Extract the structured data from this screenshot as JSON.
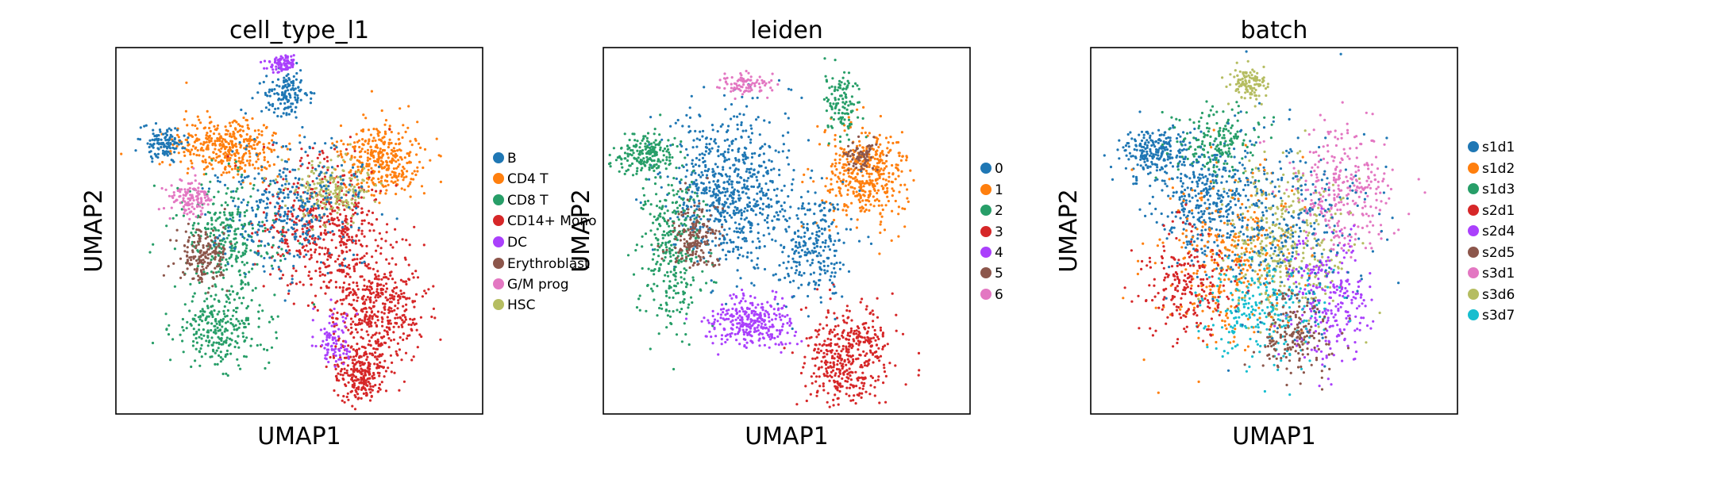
{
  "chart_data": [
    {
      "type": "scatter",
      "title": "cell_type_l1",
      "xlabel": "UMAP1",
      "ylabel": "UMAP2",
      "grid": false,
      "legend_placement": "right",
      "series": [
        {
          "name": "B",
          "color": "#1f77b4"
        },
        {
          "name": "CD4 T",
          "color": "#ff7f0e"
        },
        {
          "name": "CD8 T",
          "color": "#279e68"
        },
        {
          "name": "CD14+ Mono",
          "color": "#d62728"
        },
        {
          "name": "DC",
          "color": "#aa40fc"
        },
        {
          "name": "Erythroblast",
          "color": "#8c564b"
        },
        {
          "name": "G/M prog",
          "color": "#e377c2"
        },
        {
          "name": "HSC",
          "color": "#b5bd61"
        }
      ]
    },
    {
      "type": "scatter",
      "title": "leiden",
      "xlabel": "UMAP1",
      "ylabel": "UMAP2",
      "grid": false,
      "legend_placement": "right",
      "series": [
        {
          "name": "0",
          "color": "#1f77b4"
        },
        {
          "name": "1",
          "color": "#ff7f0e"
        },
        {
          "name": "2",
          "color": "#279e68"
        },
        {
          "name": "3",
          "color": "#d62728"
        },
        {
          "name": "4",
          "color": "#aa40fc"
        },
        {
          "name": "5",
          "color": "#8c564b"
        },
        {
          "name": "6",
          "color": "#e377c2"
        }
      ]
    },
    {
      "type": "scatter",
      "title": "batch",
      "xlabel": "UMAP1",
      "ylabel": "UMAP2",
      "grid": false,
      "legend_placement": "right",
      "series": [
        {
          "name": "s1d1",
          "color": "#1f77b4"
        },
        {
          "name": "s1d2",
          "color": "#ff7f0e"
        },
        {
          "name": "s1d3",
          "color": "#279e68"
        },
        {
          "name": "s2d1",
          "color": "#d62728"
        },
        {
          "name": "s2d4",
          "color": "#aa40fc"
        },
        {
          "name": "s2d5",
          "color": "#8c564b"
        },
        {
          "name": "s3d1",
          "color": "#e377c2"
        },
        {
          "name": "s3d6",
          "color": "#b5bd61"
        },
        {
          "name": "s3d7",
          "color": "#17becf"
        }
      ]
    }
  ]
}
